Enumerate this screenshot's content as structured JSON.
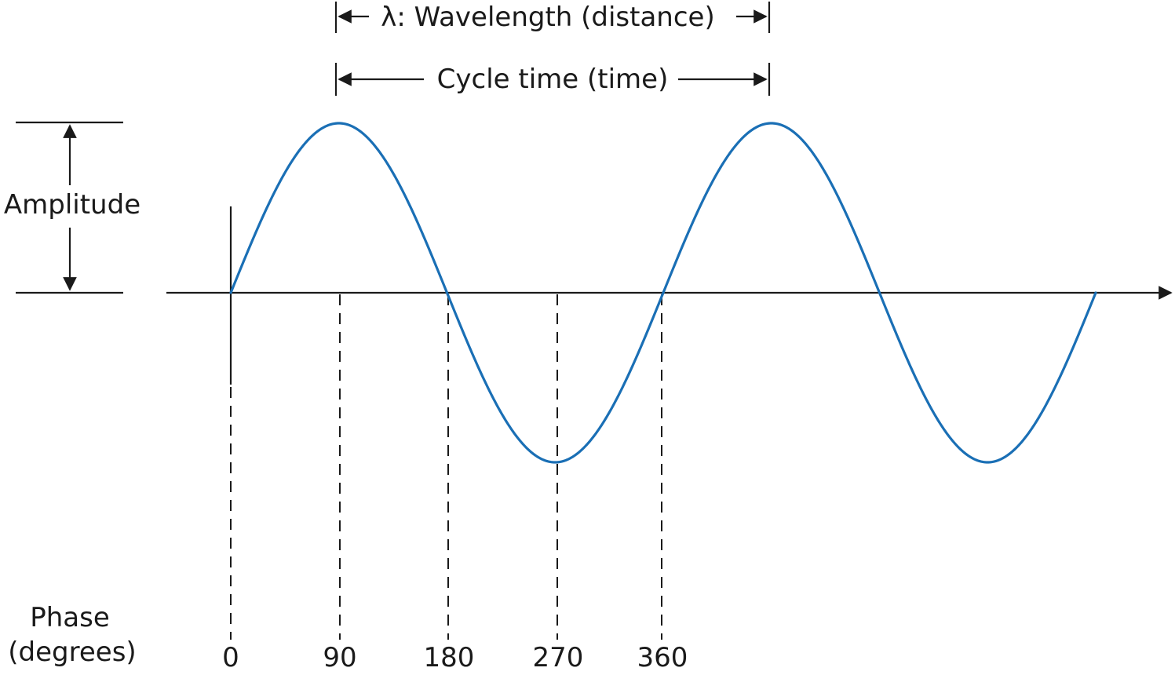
{
  "labels": {
    "wavelength": "λ: Wavelength (distance)",
    "cycle_time": "Cycle time (time)",
    "amplitude": "Amplitude",
    "phase_line1": "Phase",
    "phase_line2": "(degrees)"
  },
  "phase_ticks": [
    "0",
    "90",
    "180",
    "270",
    "360"
  ],
  "wave": {
    "color": "#1a6fb5",
    "cycles": 2
  }
}
